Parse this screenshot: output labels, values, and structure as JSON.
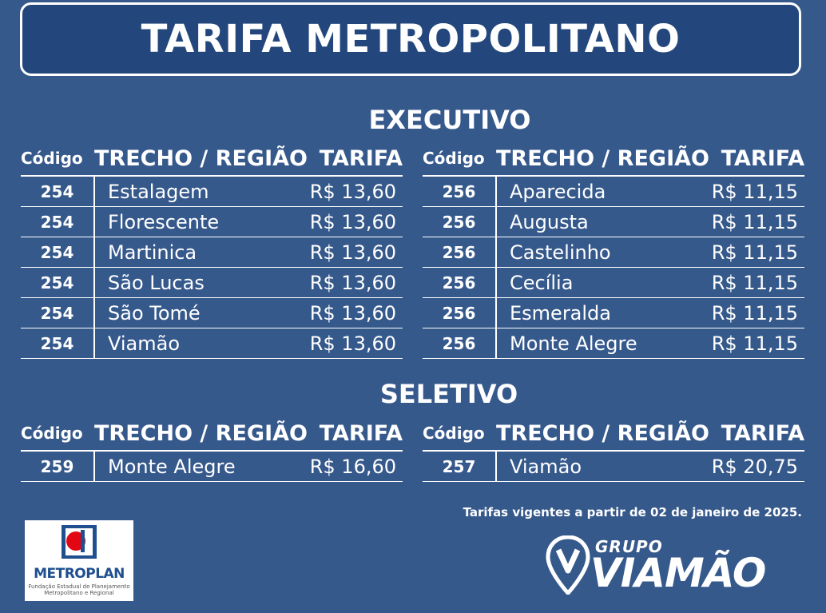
{
  "title": "TARIFA METROPOLITANO",
  "headers": {
    "code": "Código",
    "region": "TRECHO / REGIÃO",
    "fare": "TARIFA"
  },
  "executivo": {
    "title": "EXECUTIVO",
    "left": [
      {
        "code": "254",
        "region": "Estalagem",
        "fare": "R$ 13,60"
      },
      {
        "code": "254",
        "region": "Florescente",
        "fare": "R$ 13,60"
      },
      {
        "code": "254",
        "region": "Martinica",
        "fare": "R$ 13,60"
      },
      {
        "code": "254",
        "region": "São Lucas",
        "fare": "R$ 13,60"
      },
      {
        "code": "254",
        "region": "São Tomé",
        "fare": "R$ 13,60"
      },
      {
        "code": "254",
        "region": "Viamão",
        "fare": "R$ 13,60"
      }
    ],
    "right": [
      {
        "code": "256",
        "region": "Aparecida",
        "fare": "R$ 11,15"
      },
      {
        "code": "256",
        "region": "Augusta",
        "fare": "R$ 11,15"
      },
      {
        "code": "256",
        "region": "Castelinho",
        "fare": "R$ 11,15"
      },
      {
        "code": "256",
        "region": "Cecília",
        "fare": "R$ 11,15"
      },
      {
        "code": "256",
        "region": "Esmeralda",
        "fare": "R$ 11,15"
      },
      {
        "code": "256",
        "region": "Monte Alegre",
        "fare": "R$ 11,15"
      }
    ]
  },
  "seletivo": {
    "title": "SELETIVO",
    "left": [
      {
        "code": "259",
        "region": "Monte Alegre",
        "fare": "R$ 16,60"
      }
    ],
    "right": [
      {
        "code": "257",
        "region": "Viamão",
        "fare": "R$ 20,75"
      }
    ]
  },
  "note": "Tarifas vigentes a partir de 02 de janeiro de 2025.",
  "metroplan": {
    "name": "METROPLAN",
    "subtitle_line1": "Fundação Estadual de Planejamento",
    "subtitle_line2": "Metropolitano e Regional"
  },
  "grupo_viamao": {
    "grupo": "GRUPO",
    "name": "VIAMÃO"
  },
  "colors": {
    "background": "#36598c",
    "title_box": "#23477c",
    "text": "#ffffff",
    "metroplan_red": "#e30613",
    "metroplan_blue": "#1f4f8f"
  }
}
